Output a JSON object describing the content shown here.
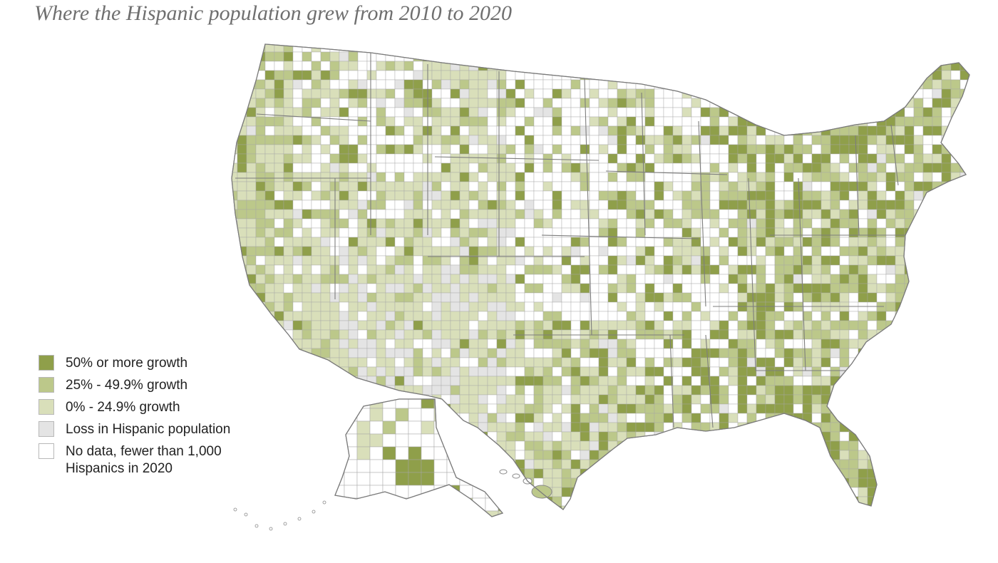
{
  "title": "Where the Hispanic population grew from 2010 to 2020",
  "colors": {
    "growth_50_plus": "#8f9f4a",
    "growth_25_49": "#bcc88a",
    "growth_0_24": "#d9dfba",
    "loss": "#e4e4e4",
    "no_data": "#ffffff",
    "county_border": "#9a9a9a",
    "state_border": "#8a8a8a"
  },
  "legend": [
    {
      "label": "50% or more growth",
      "color": "#8f9f4a"
    },
    {
      "label": "25% - 49.9% growth",
      "color": "#bcc88a"
    },
    {
      "label": "0% - 24.9% growth",
      "color": "#d9dfba"
    },
    {
      "label": "Loss in Hispanic population",
      "color": "#e4e4e4"
    },
    {
      "label": "No data, fewer than 1,000 Hispanics in 2020",
      "color": "#ffffff"
    }
  ]
}
